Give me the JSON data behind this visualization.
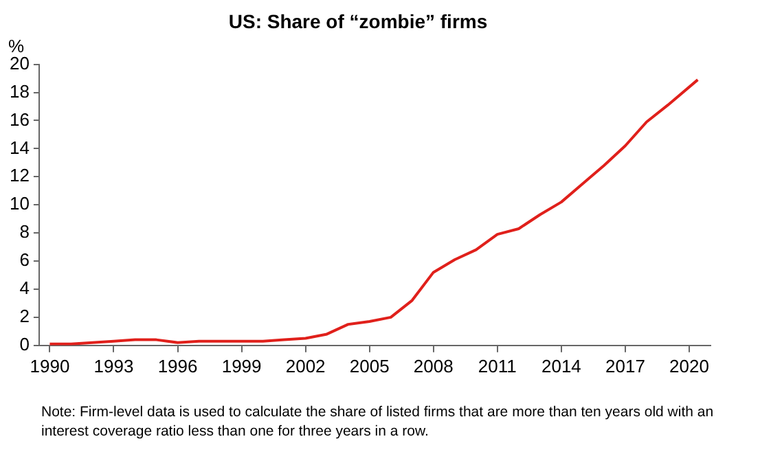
{
  "chart_data": {
    "type": "line",
    "title": "US: Share of “zombie” firms",
    "ylabel": "%",
    "annotations": [
      "Note: Firm-level data is used to calculate the share of listed firms that are more than ten years old with an interest coverage ratio less than one for three years in a row."
    ],
    "x": [
      1990,
      1991,
      1992,
      1993,
      1994,
      1995,
      1996,
      1997,
      1998,
      1999,
      2000,
      2001,
      2002,
      2003,
      2004,
      2005,
      2006,
      2007,
      2008,
      2009,
      2010,
      2011,
      2012,
      2013,
      2014,
      2015,
      2016,
      2017,
      2018,
      2019,
      2020.4
    ],
    "series": [
      {
        "color": "#e0201b",
        "values": [
          0.1,
          0.1,
          0.2,
          0.3,
          0.4,
          0.4,
          0.2,
          0.3,
          0.3,
          0.3,
          0.3,
          0.4,
          0.5,
          0.8,
          1.5,
          1.7,
          2.0,
          3.2,
          5.2,
          6.1,
          6.8,
          7.9,
          8.3,
          9.3,
          10.2,
          11.5,
          12.8,
          14.2,
          15.9,
          17.1,
          18.9
        ]
      }
    ],
    "xlim": [
      1989.5,
      2021
    ],
    "xticks": [
      1990,
      1993,
      1996,
      1999,
      2002,
      2005,
      2008,
      2011,
      2014,
      2017,
      2020
    ],
    "ylim": [
      0,
      20
    ],
    "yticks": [
      0,
      2,
      4,
      6,
      8,
      10,
      12,
      14,
      16,
      18,
      20
    ],
    "grid": false,
    "legend": false,
    "marker": "none",
    "line_style": "solid"
  }
}
